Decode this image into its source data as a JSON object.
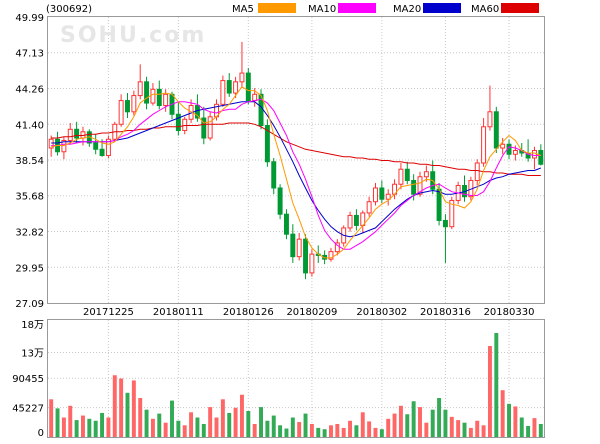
{
  "title": "(300692)",
  "watermark": "SOHU.com",
  "legend": [
    {
      "label": "MA5",
      "color": "#ff9900"
    },
    {
      "label": "MA10",
      "color": "#ff00ff"
    },
    {
      "label": "MA20",
      "color": "#0000cc"
    },
    {
      "label": "MA60",
      "color": "#dd0000"
    }
  ],
  "colors": {
    "up": "#ff3333",
    "down": "#009933",
    "vol_up": "#ff6666",
    "vol_down": "#33aa55",
    "grid": "#c8c8c8",
    "axis": "#999999"
  },
  "chart_data": [
    {
      "type": "candlestick",
      "ylim": [
        27.09,
        49.99
      ],
      "y_ticks": [
        "49.99",
        "47.13",
        "44.26",
        "41.40",
        "38.54",
        "35.68",
        "32.82",
        "29.95",
        "27.09"
      ],
      "x_ticks": [
        {
          "label": "20171225",
          "index": 9
        },
        {
          "label": "20180111",
          "index": 20
        },
        {
          "label": "20180126",
          "index": 31
        },
        {
          "label": "20180209",
          "index": 41
        },
        {
          "label": "20180302",
          "index": 52
        },
        {
          "label": "20180316",
          "index": 62
        },
        {
          "label": "20180330",
          "index": 72
        }
      ],
      "candles": [
        [
          39.5,
          40.5,
          38.8,
          40.2
        ],
        [
          40.2,
          40.8,
          38.9,
          39.2
        ],
        [
          39.2,
          40.4,
          38.6,
          40.1
        ],
        [
          40.1,
          41.5,
          39.8,
          41.0
        ],
        [
          41.0,
          41.6,
          39.9,
          40.3
        ],
        [
          40.3,
          41.2,
          39.7,
          40.8
        ],
        [
          40.8,
          41.0,
          39.6,
          39.9
        ],
        [
          39.9,
          40.6,
          39.0,
          39.4
        ],
        [
          39.4,
          40.2,
          38.8,
          38.9
        ],
        [
          38.9,
          40.5,
          38.7,
          40.2
        ],
        [
          40.2,
          41.6,
          40.0,
          41.4
        ],
        [
          41.4,
          43.8,
          41.2,
          43.3
        ],
        [
          43.3,
          43.9,
          41.9,
          42.4
        ],
        [
          42.4,
          44.1,
          42.1,
          43.7
        ],
        [
          43.7,
          46.2,
          43.4,
          44.8
        ],
        [
          44.8,
          45.2,
          42.6,
          43.1
        ],
        [
          43.1,
          44.7,
          42.9,
          44.2
        ],
        [
          44.2,
          44.9,
          42.6,
          42.9
        ],
        [
          42.9,
          44.2,
          42.4,
          43.8
        ],
        [
          43.8,
          44.0,
          41.8,
          42.2
        ],
        [
          42.2,
          43.2,
          40.5,
          40.9
        ],
        [
          40.9,
          42.0,
          40.6,
          41.8
        ],
        [
          41.8,
          43.4,
          41.5,
          42.9
        ],
        [
          42.9,
          43.8,
          41.6,
          41.9
        ],
        [
          41.9,
          42.8,
          39.8,
          40.3
        ],
        [
          40.3,
          42.4,
          40.1,
          42.0
        ],
        [
          42.0,
          43.4,
          41.7,
          43.0
        ],
        [
          43.0,
          45.3,
          42.8,
          44.9
        ],
        [
          44.9,
          45.5,
          43.6,
          43.9
        ],
        [
          43.9,
          45.2,
          43.5,
          44.8
        ],
        [
          44.8,
          48.0,
          44.3,
          45.5
        ],
        [
          45.5,
          45.9,
          43.0,
          43.3
        ],
        [
          43.3,
          44.3,
          42.8,
          43.8
        ],
        [
          43.8,
          44.2,
          41.0,
          41.3
        ],
        [
          41.3,
          41.8,
          38.0,
          38.4
        ],
        [
          38.4,
          38.7,
          35.8,
          36.3
        ],
        [
          36.3,
          36.6,
          33.8,
          34.2
        ],
        [
          34.2,
          34.6,
          32.2,
          32.6
        ],
        [
          32.6,
          33.4,
          30.3,
          30.8
        ],
        [
          30.8,
          32.7,
          30.5,
          32.2
        ],
        [
          32.2,
          32.6,
          29.0,
          29.5
        ],
        [
          29.5,
          31.4,
          29.2,
          31.0
        ],
        [
          31.0,
          31.7,
          30.3,
          30.9
        ],
        [
          30.9,
          31.3,
          30.2,
          30.6
        ],
        [
          30.6,
          31.5,
          30.4,
          31.2
        ],
        [
          31.2,
          32.2,
          30.9,
          31.9
        ],
        [
          31.9,
          33.3,
          31.6,
          33.1
        ],
        [
          33.1,
          34.4,
          32.8,
          34.1
        ],
        [
          34.1,
          34.6,
          32.9,
          33.3
        ],
        [
          33.3,
          34.5,
          32.7,
          34.3
        ],
        [
          34.3,
          35.6,
          34.0,
          35.2
        ],
        [
          35.2,
          36.7,
          34.9,
          36.3
        ],
        [
          36.3,
          36.9,
          35.1,
          35.4
        ],
        [
          35.4,
          36.2,
          34.9,
          35.8
        ],
        [
          35.8,
          37.0,
          35.4,
          36.6
        ],
        [
          36.6,
          38.3,
          36.2,
          37.8
        ],
        [
          37.8,
          38.4,
          36.6,
          36.9
        ],
        [
          36.9,
          37.4,
          35.3,
          35.8
        ],
        [
          35.8,
          37.6,
          35.6,
          37.2
        ],
        [
          37.2,
          38.1,
          36.8,
          37.6
        ],
        [
          37.6,
          38.5,
          35.8,
          36.2
        ],
        [
          36.2,
          36.7,
          33.3,
          33.7
        ],
        [
          33.7,
          34.2,
          30.3,
          33.2
        ],
        [
          33.2,
          35.6,
          33.0,
          35.3
        ],
        [
          35.3,
          36.8,
          35.0,
          36.5
        ],
        [
          36.5,
          37.3,
          35.2,
          35.6
        ],
        [
          35.6,
          37.2,
          35.3,
          36.9
        ],
        [
          36.9,
          38.6,
          36.5,
          38.3
        ],
        [
          38.3,
          41.9,
          38.0,
          41.2
        ],
        [
          41.2,
          44.5,
          40.9,
          42.4
        ],
        [
          42.4,
          42.8,
          39.1,
          39.5
        ],
        [
          39.5,
          40.3,
          39.0,
          39.8
        ],
        [
          39.8,
          40.2,
          38.6,
          39.0
        ],
        [
          39.0,
          39.7,
          38.5,
          39.3
        ],
        [
          39.3,
          39.9,
          38.8,
          39.1
        ],
        [
          39.1,
          40.2,
          38.4,
          38.7
        ],
        [
          38.7,
          39.6,
          37.8,
          39.3
        ],
        [
          39.3,
          39.8,
          38.1,
          38.2
        ]
      ],
      "ma5": [
        39.6,
        39.7,
        39.7,
        39.9,
        40.2,
        40.3,
        40.4,
        40.2,
        39.9,
        39.8,
        40.0,
        40.6,
        41.2,
        42.0,
        43.1,
        43.5,
        43.8,
        43.8,
        43.9,
        43.8,
        43.2,
        42.7,
        42.4,
        42.1,
        41.5,
        41.6,
        42.0,
        42.6,
        43.0,
        43.7,
        44.4,
        44.1,
        44.1,
        43.7,
        42.5,
        40.6,
        38.9,
        37.0,
        35.1,
        33.8,
        32.4,
        31.5,
        31.0,
        30.7,
        30.7,
        31.0,
        31.4,
        32.1,
        32.7,
        33.3,
        33.9,
        34.6,
        35.0,
        35.3,
        35.8,
        36.4,
        36.5,
        36.6,
        36.7,
        37.0,
        36.9,
        36.2,
        35.2,
        35.0,
        34.9,
        34.7,
        35.2,
        36.2,
        37.7,
        38.8,
        39.4,
        40.0,
        40.5,
        40.1,
        39.3,
        39.1,
        39.1,
        38.9
      ],
      "ma10": [
        39.7,
        39.7,
        39.8,
        39.8,
        39.9,
        40.0,
        40.0,
        40.0,
        40.0,
        40.0,
        40.1,
        40.4,
        40.6,
        40.9,
        41.4,
        41.8,
        42.2,
        42.5,
        42.8,
        43.0,
        43.2,
        43.2,
        43.1,
        43.0,
        42.6,
        42.4,
        42.3,
        42.5,
        42.6,
        42.6,
        43.0,
        43.2,
        43.3,
        43.4,
        43.1,
        42.5,
        41.5,
        40.5,
        39.2,
        38.2,
        37.0,
        35.6,
        34.1,
        32.9,
        32.2,
        31.7,
        31.4,
        31.4,
        31.7,
        32.0,
        32.4,
        32.8,
        33.3,
        33.8,
        34.3,
        34.9,
        35.3,
        35.7,
        36.0,
        36.3,
        36.5,
        36.6,
        36.3,
        36.0,
        35.9,
        35.8,
        35.7,
        35.7,
        36.0,
        36.8,
        37.9,
        38.9,
        39.6,
        39.5,
        39.3,
        39.0,
        38.9,
        38.9
      ],
      "ma20": [
        39.9,
        39.9,
        40.0,
        40.0,
        40.0,
        40.0,
        40.0,
        40.0,
        40.0,
        40.0,
        40.1,
        40.2,
        40.3,
        40.5,
        40.7,
        40.9,
        41.1,
        41.3,
        41.5,
        41.7,
        41.9,
        42.1,
        42.3,
        42.5,
        42.6,
        42.7,
        42.8,
        42.9,
        43.0,
        43.1,
        43.2,
        43.2,
        43.2,
        42.8,
        42.1,
        41.3,
        40.4,
        39.4,
        38.4,
        37.3,
        36.3,
        35.3,
        34.5,
        33.8,
        33.2,
        32.8,
        32.5,
        32.4,
        32.5,
        32.7,
        32.9,
        33.1,
        33.6,
        34.1,
        34.6,
        35.0,
        35.4,
        35.7,
        35.9,
        36.0,
        36.1,
        36.0,
        35.8,
        35.8,
        35.9,
        36.0,
        36.2,
        36.4,
        36.6,
        36.9,
        37.1,
        37.2,
        37.4,
        37.5,
        37.6,
        37.7,
        37.7,
        37.9
      ],
      "ma60": [
        40.3,
        40.3,
        40.4,
        40.4,
        40.5,
        40.5,
        40.6,
        40.6,
        40.7,
        40.7,
        40.8,
        40.8,
        40.9,
        40.9,
        41.0,
        41.0,
        41.1,
        41.1,
        41.2,
        41.2,
        41.2,
        41.3,
        41.3,
        41.3,
        41.4,
        41.4,
        41.4,
        41.4,
        41.5,
        41.5,
        41.5,
        41.5,
        41.4,
        41.2,
        40.9,
        40.6,
        40.3,
        40.0,
        39.8,
        39.6,
        39.4,
        39.3,
        39.2,
        39.1,
        39.0,
        38.9,
        38.8,
        38.8,
        38.7,
        38.7,
        38.6,
        38.6,
        38.5,
        38.5,
        38.4,
        38.4,
        38.3,
        38.3,
        38.2,
        38.2,
        38.1,
        38.1,
        38.0,
        37.9,
        37.8,
        37.8,
        37.7,
        37.7,
        37.6,
        37.6,
        37.5,
        37.5,
        37.4,
        37.4,
        37.4,
        37.3,
        37.3,
        37.3
      ]
    },
    {
      "type": "bar",
      "ylim": [
        0,
        180000
      ],
      "y_ticks": [
        {
          "label": "18万",
          "value": 180000
        },
        {
          "label": "13万",
          "value": 130000
        },
        {
          "label": "90455",
          "value": 90455
        },
        {
          "label": "45227",
          "value": 45227
        },
        {
          "label": "0",
          "value": 0
        }
      ],
      "values": [
        58000,
        44000,
        30000,
        48000,
        26000,
        33000,
        28000,
        25000,
        37000,
        30000,
        95000,
        90000,
        68000,
        87000,
        60000,
        42000,
        28000,
        36000,
        22000,
        56000,
        25000,
        18000,
        38000,
        30000,
        20000,
        46000,
        30000,
        58000,
        37000,
        45000,
        65000,
        40000,
        20000,
        46000,
        25000,
        33000,
        18000,
        13000,
        30000,
        23000,
        36000,
        20000,
        14000,
        12000,
        18000,
        20000,
        14000,
        25000,
        18000,
        38000,
        24000,
        14000,
        12000,
        28000,
        36000,
        48000,
        35000,
        55000,
        46000,
        22000,
        42000,
        60000,
        42000,
        31000,
        26000,
        22000,
        14000,
        25000,
        18000,
        140000,
        160000,
        72000,
        51000,
        47000,
        30000,
        17000,
        29000,
        20000
      ]
    }
  ]
}
